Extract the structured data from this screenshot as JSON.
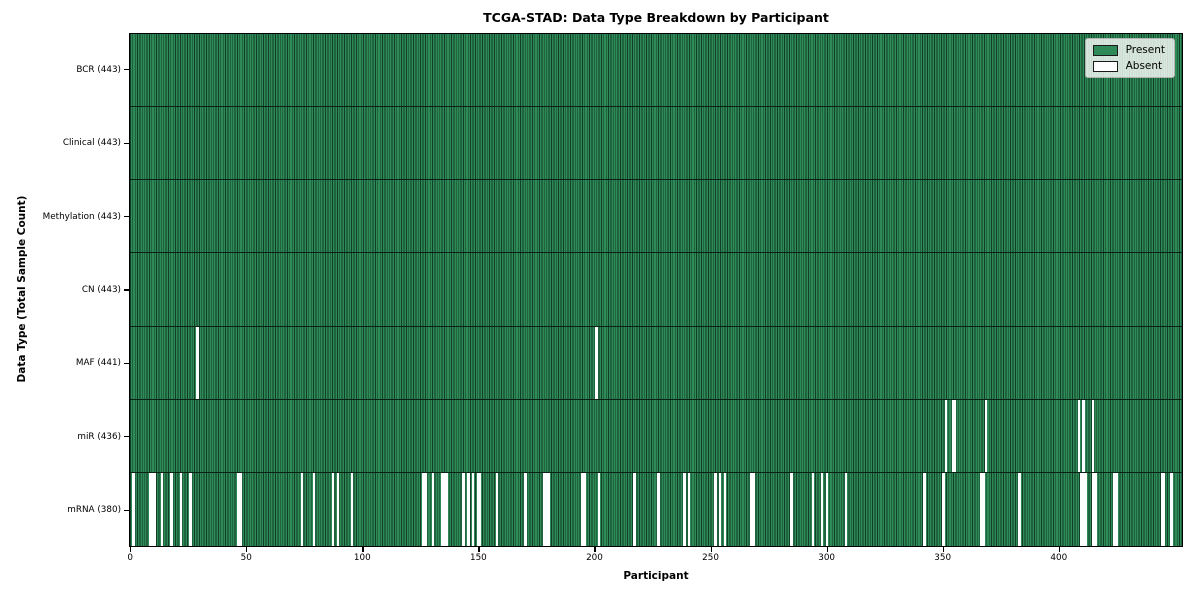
{
  "title": "TCGA-STAD: Data Type Breakdown by Participant",
  "xlabel": "Participant",
  "ylabel": "Data Type (Total Sample Count)",
  "legend": {
    "present_label": "Present",
    "absent_label": "Absent"
  },
  "colors": {
    "present": "#2e8b57",
    "present_edge": "#123d27",
    "absent": "#ffffff"
  },
  "chart_data": {
    "type": "heatmap",
    "title": "TCGA-STAD: Data Type Breakdown by Participant",
    "xlabel": "Participant",
    "ylabel": "Data Type (Total Sample Count)",
    "legend_entries": [
      "Present",
      "Absent"
    ],
    "legend_position": "upper right",
    "x_ticks": [
      0,
      50,
      100,
      150,
      200,
      250,
      300,
      350,
      400
    ],
    "n_participants": 443,
    "rows": [
      {
        "label": "BCR (443)",
        "count": 443,
        "absent": []
      },
      {
        "label": "Clinical (443)",
        "count": 443,
        "absent": []
      },
      {
        "label": "Methylation (443)",
        "count": 443,
        "absent": []
      },
      {
        "label": "CN (443)",
        "count": 443,
        "absent": []
      },
      {
        "label": "MAF (441)",
        "count": 441,
        "absent": [
          28,
          196
        ]
      },
      {
        "label": "miR (436)",
        "count": 436,
        "absent": [
          343,
          346,
          347,
          360,
          399,
          401,
          405
        ]
      },
      {
        "label": "mRNA (380)",
        "count": 380,
        "absent": [
          1,
          8,
          9,
          10,
          13,
          17,
          21,
          25,
          45,
          46,
          72,
          77,
          85,
          87,
          93,
          123,
          124,
          127,
          131,
          132,
          133,
          140,
          142,
          144,
          146,
          147,
          154,
          166,
          174,
          175,
          176,
          190,
          191,
          197,
          212,
          222,
          233,
          235,
          246,
          248,
          250,
          261,
          262,
          278,
          287,
          291,
          293,
          301,
          334,
          342,
          358,
          359,
          374,
          400,
          401,
          402,
          405,
          406,
          414,
          415,
          434,
          435,
          438
        ]
      }
    ]
  }
}
